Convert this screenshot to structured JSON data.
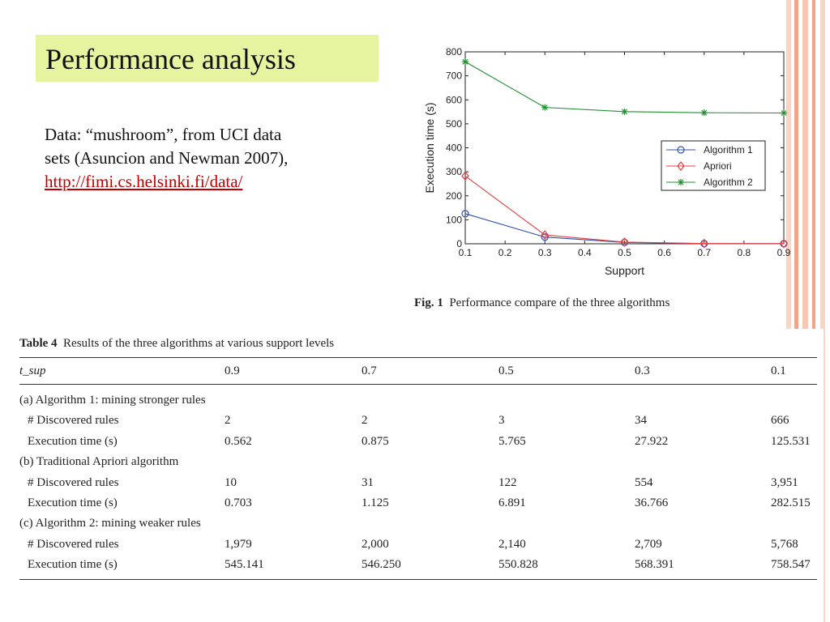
{
  "slide": {
    "title": "Performance analysis",
    "desc_line1": "Data: “mushroom”, from UCI data",
    "desc_line2": "sets (Asuncion and Newman 2007),",
    "desc_link": "http://fimi.cs.helsinki.fi/data/"
  },
  "figure": {
    "caption_label": "Fig. 1",
    "caption_text": "Performance compare of the three algorithms"
  },
  "chart_data": {
    "type": "line",
    "xlabel": "Support",
    "ylabel": "Execution time (s)",
    "x": [
      0.1,
      0.3,
      0.5,
      0.7,
      0.9
    ],
    "x_ticks": [
      "0.1",
      "0.2",
      "0.3",
      "0.4",
      "0.5",
      "0.6",
      "0.7",
      "0.8",
      "0.9"
    ],
    "xlim": [
      0.1,
      0.9
    ],
    "y_ticks": [
      "0",
      "100",
      "200",
      "300",
      "400",
      "500",
      "600",
      "700",
      "800"
    ],
    "ylim": [
      0,
      800
    ],
    "legend_position": "center-right",
    "grid": false,
    "series": [
      {
        "name": "Algorithm 1",
        "marker": "circle",
        "color": "#3050b0",
        "values": [
          125.531,
          27.922,
          5.765,
          0.875,
          0.562
        ]
      },
      {
        "name": "Apriori",
        "marker": "diamond",
        "color": "#e04040",
        "values": [
          282.515,
          36.766,
          6.891,
          1.125,
          0.703
        ]
      },
      {
        "name": "Algorithm 2",
        "marker": "star",
        "color": "#209030",
        "values": [
          758.547,
          568.391,
          550.828,
          546.25,
          545.141
        ]
      }
    ]
  },
  "table": {
    "caption_label": "Table 4",
    "caption_text": "Results of the three algorithms at various support levels",
    "header": [
      "t_sup",
      "0.9",
      "0.7",
      "0.5",
      "0.3",
      "0.1"
    ],
    "sections": [
      {
        "title": "(a) Algorithm 1: mining stronger rules",
        "rows": [
          {
            "label": "# Discovered rules",
            "values": [
              "2",
              "2",
              "3",
              "34",
              "666"
            ]
          },
          {
            "label": "Execution time (s)",
            "values": [
              "0.562",
              "0.875",
              "5.765",
              "27.922",
              "125.531"
            ]
          }
        ]
      },
      {
        "title": "(b) Traditional Apriori algorithm",
        "rows": [
          {
            "label": "# Discovered rules",
            "values": [
              "10",
              "31",
              "122",
              "554",
              "3,951"
            ]
          },
          {
            "label": "Execution time (s)",
            "values": [
              "0.703",
              "1.125",
              "6.891",
              "36.766",
              "282.515"
            ]
          }
        ]
      },
      {
        "title": "(c) Algorithm 2: mining weaker rules",
        "rows": [
          {
            "label": "# Discovered rules",
            "values": [
              "1,979",
              "2,000",
              "2,140",
              "2,709",
              "5,768"
            ]
          },
          {
            "label": "Execution time (s)",
            "values": [
              "545.141",
              "546.250",
              "550.828",
              "568.391",
              "758.547"
            ]
          }
        ]
      }
    ]
  },
  "theme": {
    "title_bg": "#e6f4a0",
    "link_color": "#c00000",
    "stripe_colors": [
      "#f6c8b4",
      "#f0a488",
      "#f7d6c6"
    ]
  }
}
